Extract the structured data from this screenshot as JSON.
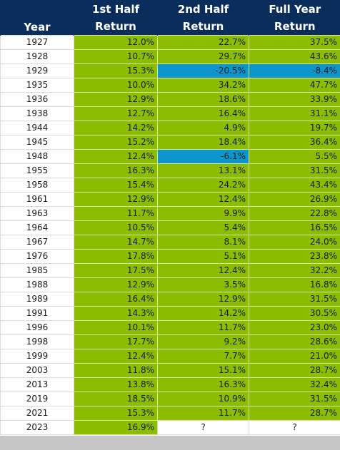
{
  "headers": {
    "year": "Year",
    "h1_line1": "1st Half",
    "h1_line2": "Return",
    "h2_line1": "2nd Half",
    "h2_line2": "Return",
    "fy_line1": "Full Year",
    "fy_line2": "Return"
  },
  "colors": {
    "header_bg": "#0a2d5c",
    "positive": "#8cbd00",
    "negative": "#0d96cc",
    "footer": "#c6c6c6"
  },
  "rows": [
    {
      "year": "1927",
      "h1": "12.0%",
      "h2": "22.7%",
      "fy": "37.5%"
    },
    {
      "year": "1928",
      "h1": "10.7%",
      "h2": "29.7%",
      "fy": "43.6%"
    },
    {
      "year": "1929",
      "h1": "15.3%",
      "h2": "-20.5%",
      "fy": "-8.4%"
    },
    {
      "year": "1935",
      "h1": "10.0%",
      "h2": "34.2%",
      "fy": "47.7%"
    },
    {
      "year": "1936",
      "h1": "12.9%",
      "h2": "18.6%",
      "fy": "33.9%"
    },
    {
      "year": "1938",
      "h1": "12.7%",
      "h2": "16.4%",
      "fy": "31.1%"
    },
    {
      "year": "1944",
      "h1": "14.2%",
      "h2": "4.9%",
      "fy": "19.7%"
    },
    {
      "year": "1945",
      "h1": "15.2%",
      "h2": "18.4%",
      "fy": "36.4%"
    },
    {
      "year": "1948",
      "h1": "12.4%",
      "h2": "-6.1%",
      "fy": "5.5%"
    },
    {
      "year": "1955",
      "h1": "16.3%",
      "h2": "13.1%",
      "fy": "31.5%"
    },
    {
      "year": "1958",
      "h1": "15.4%",
      "h2": "24.2%",
      "fy": "43.4%"
    },
    {
      "year": "1961",
      "h1": "12.9%",
      "h2": "12.4%",
      "fy": "26.9%"
    },
    {
      "year": "1963",
      "h1": "11.7%",
      "h2": "9.9%",
      "fy": "22.8%"
    },
    {
      "year": "1964",
      "h1": "10.5%",
      "h2": "5.4%",
      "fy": "16.5%"
    },
    {
      "year": "1967",
      "h1": "14.7%",
      "h2": "8.1%",
      "fy": "24.0%"
    },
    {
      "year": "1976",
      "h1": "17.8%",
      "h2": "5.1%",
      "fy": "23.8%"
    },
    {
      "year": "1985",
      "h1": "17.5%",
      "h2": "12.4%",
      "fy": "32.2%"
    },
    {
      "year": "1988",
      "h1": "12.9%",
      "h2": "3.5%",
      "fy": "16.8%"
    },
    {
      "year": "1989",
      "h1": "16.4%",
      "h2": "12.9%",
      "fy": "31.5%"
    },
    {
      "year": "1991",
      "h1": "14.3%",
      "h2": "14.2%",
      "fy": "30.5%"
    },
    {
      "year": "1996",
      "h1": "10.1%",
      "h2": "11.7%",
      "fy": "23.0%"
    },
    {
      "year": "1998",
      "h1": "17.7%",
      "h2": "9.2%",
      "fy": "28.6%"
    },
    {
      "year": "1999",
      "h1": "12.4%",
      "h2": "7.7%",
      "fy": "21.0%"
    },
    {
      "year": "2003",
      "h1": "11.8%",
      "h2": "15.1%",
      "fy": "28.7%"
    },
    {
      "year": "2013",
      "h1": "13.8%",
      "h2": "16.3%",
      "fy": "32.4%"
    },
    {
      "year": "2019",
      "h1": "18.5%",
      "h2": "10.9%",
      "fy": "31.5%"
    },
    {
      "year": "2021",
      "h1": "15.3%",
      "h2": "11.7%",
      "fy": "28.7%"
    },
    {
      "year": "2023",
      "h1": "16.9%",
      "h2": "?",
      "fy": "?"
    }
  ]
}
